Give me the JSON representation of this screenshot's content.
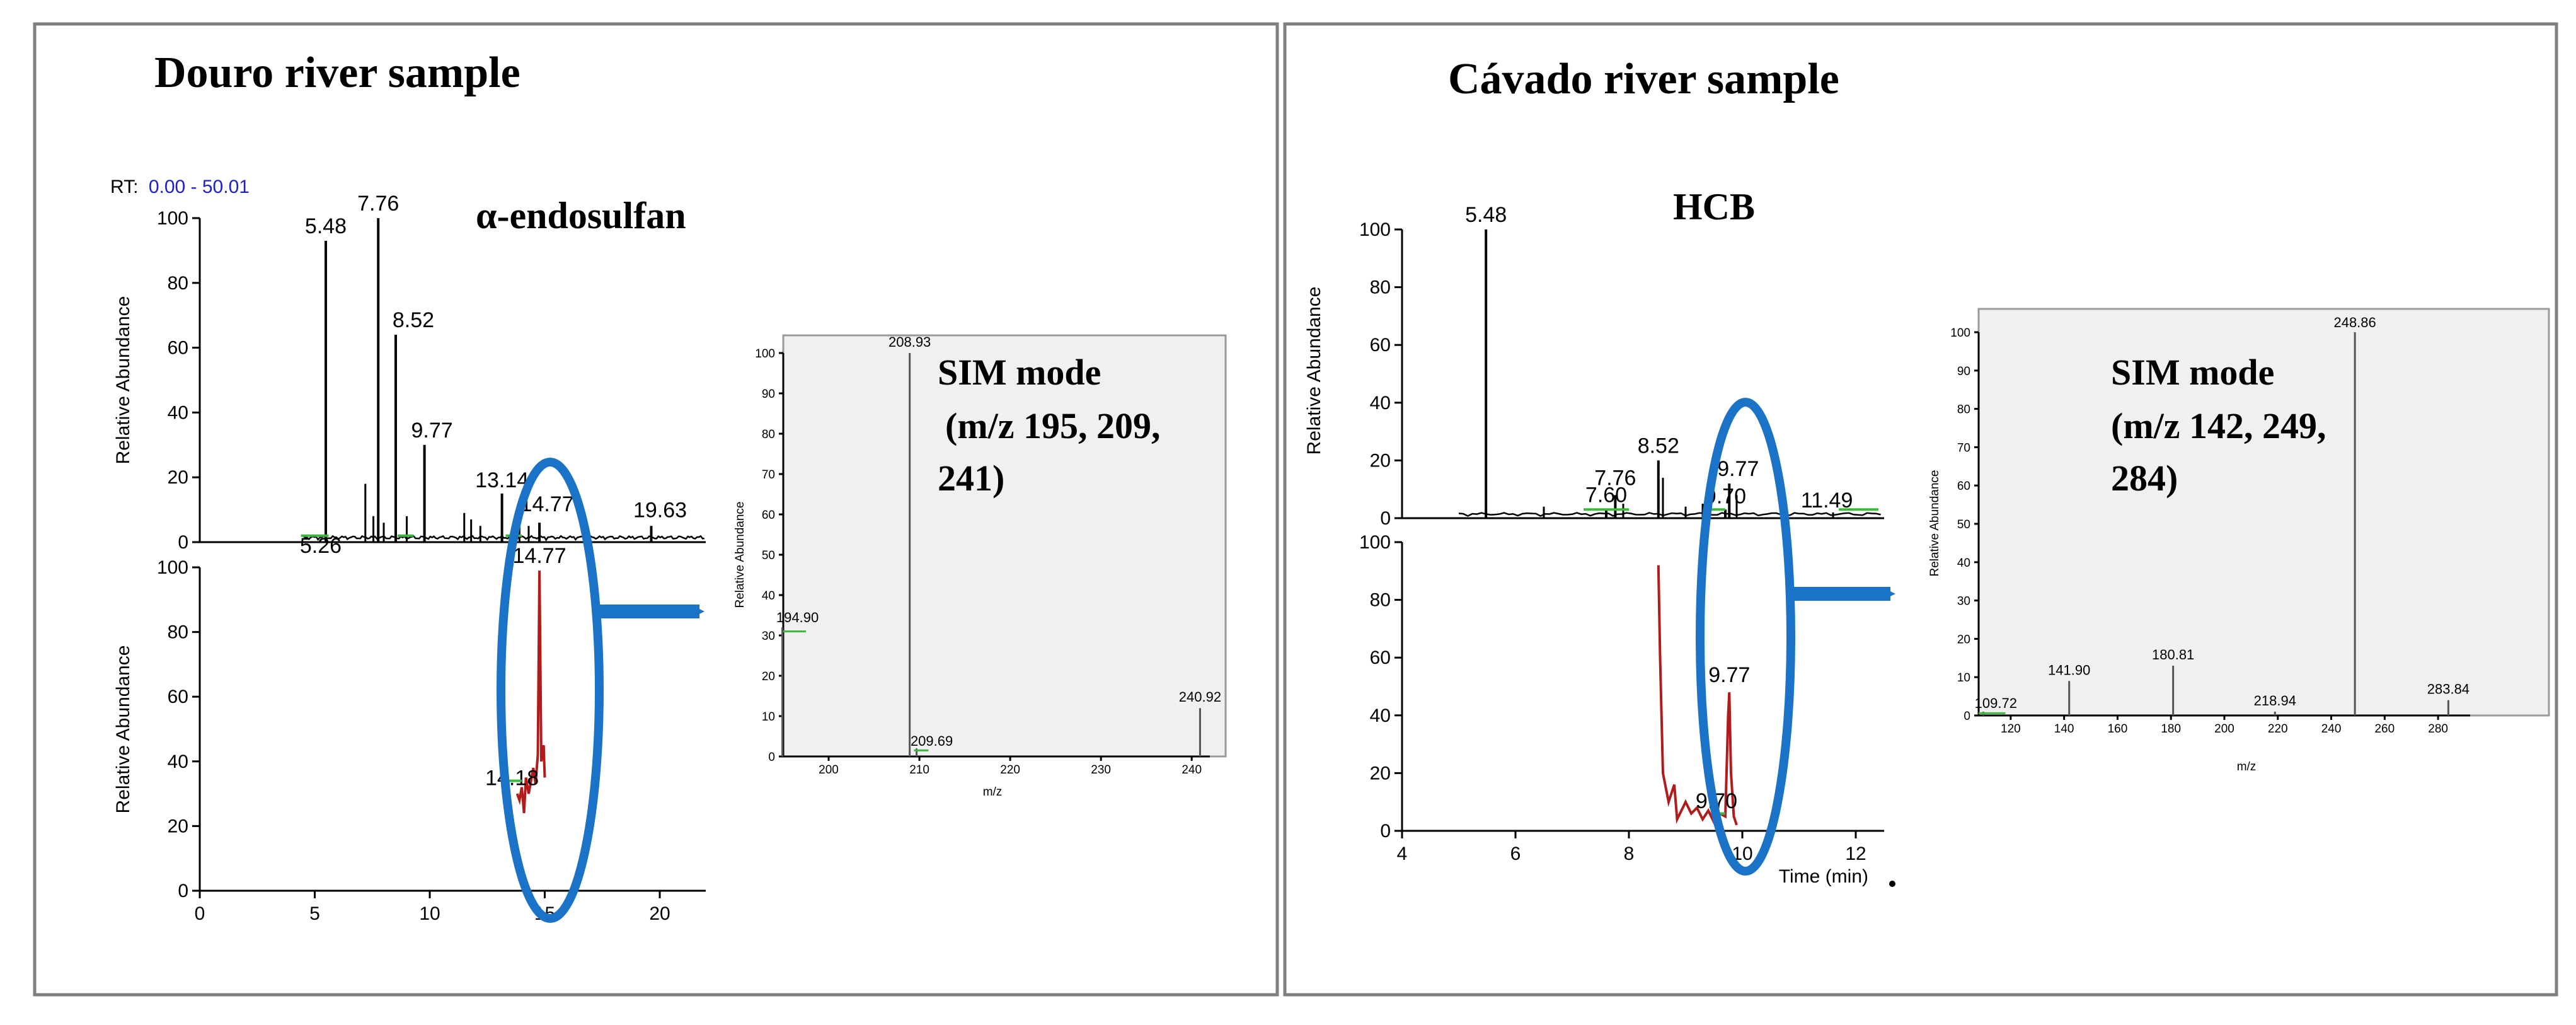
{
  "panels": [
    {
      "title": "Douro river sample",
      "rt_label": "RT:",
      "rt_range": "0.00 - 50.01",
      "compound": "α-endosulfan",
      "tic": {
        "ylabel": "Relative Abundance",
        "ylim": [
          0,
          100
        ],
        "xlim": [
          0,
          22
        ],
        "yticks": [
          "0",
          "20",
          "40",
          "60",
          "80",
          "100"
        ],
        "peaks": [
          {
            "x": 5.26,
            "y": 1,
            "label": "5.26"
          },
          {
            "x": 5.48,
            "y": 93,
            "label": "5.48"
          },
          {
            "x": 7.76,
            "y": 100,
            "label": "7.76"
          },
          {
            "x": 8.52,
            "y": 64,
            "label": "8.52"
          },
          {
            "x": 9.77,
            "y": 30,
            "label": "9.77"
          },
          {
            "x": 13.14,
            "y": 15,
            "label": "13.14"
          },
          {
            "x": 14.77,
            "y": 6,
            "label": "14.77"
          },
          {
            "x": 19.63,
            "y": 5,
            "label": "19.63"
          }
        ]
      },
      "sim_trace": {
        "ylabel": "Relative Abundance",
        "ylim": [
          0,
          100
        ],
        "xlim": [
          0,
          22
        ],
        "xticks": [
          "0",
          "5",
          "10",
          "15",
          "20"
        ],
        "yticks": [
          "0",
          "20",
          "40",
          "60",
          "80",
          "100"
        ],
        "peaks": [
          {
            "x": 14.77,
            "y": 99,
            "label": "14.77"
          },
          {
            "x": 14.18,
            "y": 35,
            "label": "14.18"
          }
        ]
      },
      "spectrum": {
        "ylabel": "Relative Abundance",
        "xlabel": "m/z",
        "xlim": [
          195,
          242
        ],
        "ylim": [
          0,
          100
        ],
        "xticks": [
          "200",
          "210",
          "220",
          "230",
          "240"
        ],
        "yticks": [
          "0",
          "10",
          "20",
          "30",
          "40",
          "50",
          "60",
          "70",
          "80",
          "90",
          "100"
        ],
        "sim_title": "SIM mode",
        "sim_ions": [
          "(m/z 195, 209,",
          "241)"
        ],
        "peaks": [
          {
            "mz": 194.9,
            "ab": 32,
            "label": "194.90"
          },
          {
            "mz": 208.93,
            "ab": 100,
            "label": "208.93"
          },
          {
            "mz": 209.69,
            "ab": 2,
            "label": "209.69"
          },
          {
            "mz": 240.92,
            "ab": 12,
            "label": "240.92"
          }
        ]
      }
    },
    {
      "title": "Cávado river sample",
      "compound": "HCB",
      "tic": {
        "ylabel": "Relative Abundance",
        "ylim": [
          0,
          100
        ],
        "xlim": [
          4,
          12.5
        ],
        "yticks": [
          "0",
          "20",
          "40",
          "60",
          "80",
          "100"
        ],
        "peaks": [
          {
            "x": 5.48,
            "y": 100,
            "label": "5.48"
          },
          {
            "x": 7.6,
            "y": 3,
            "label": "7.60"
          },
          {
            "x": 7.76,
            "y": 8,
            "label": "7.76"
          },
          {
            "x": 8.52,
            "y": 20,
            "label": "8.52"
          },
          {
            "x": 9.7,
            "y": 3,
            "label": "9.70"
          },
          {
            "x": 9.77,
            "y": 12,
            "label": "9.77"
          },
          {
            "x": 11.49,
            "y": 2,
            "label": "11.49"
          }
        ]
      },
      "sim_trace": {
        "xlabel": "Time (min)",
        "ylim": [
          0,
          100
        ],
        "xlim": [
          4,
          12.5
        ],
        "xticks": [
          "4",
          "6",
          "8",
          "10",
          "12"
        ],
        "yticks": [
          "0",
          "20",
          "40",
          "60",
          "80",
          "100"
        ],
        "peaks": [
          {
            "x": 9.77,
            "y": 48,
            "label": "9.77"
          },
          {
            "x": 9.7,
            "y": 7,
            "label": "9.70"
          }
        ]
      },
      "spectrum": {
        "ylabel": "Relative Abundance",
        "xlabel": "m/z",
        "xlim": [
          108,
          292
        ],
        "ylim": [
          0,
          100
        ],
        "xticks": [
          "120",
          "140",
          "160",
          "180",
          "200",
          "220",
          "240",
          "260",
          "280"
        ],
        "yticks": [
          "0",
          "10",
          "20",
          "30",
          "40",
          "50",
          "60",
          "70",
          "80",
          "90",
          "100"
        ],
        "sim_title": "SIM mode",
        "sim_ions": [
          "(m/z 142, 249,",
          "284)"
        ],
        "peaks": [
          {
            "mz": 109.72,
            "ab": 1,
            "label": "109.72"
          },
          {
            "mz": 141.9,
            "ab": 9,
            "label": "141.90"
          },
          {
            "mz": 180.81,
            "ab": 13,
            "label": "180.81"
          },
          {
            "mz": 218.94,
            "ab": 1,
            "label": "218.94"
          },
          {
            "mz": 248.86,
            "ab": 100,
            "label": "248.86"
          },
          {
            "mz": 283.84,
            "ab": 4,
            "label": "283.84"
          }
        ]
      }
    }
  ],
  "chart_data": [
    {
      "type": "line",
      "xlabel": "",
      "ylabel": "Relative Abundance",
      "ylim": [
        0,
        100
      ],
      "xlim": [
        0,
        22
      ],
      "x": [
        5.26,
        5.48,
        7.76,
        8.52,
        9.77,
        13.14,
        14.77,
        19.63
      ],
      "values": [
        1,
        93,
        100,
        64,
        30,
        15,
        6,
        5
      ]
    },
    {
      "type": "line",
      "xlabel": "",
      "ylabel": "Relative Abundance",
      "ylim": [
        0,
        100
      ],
      "xlim": [
        0,
        22
      ],
      "x": [
        14.18,
        14.77
      ],
      "values": [
        35,
        99
      ]
    },
    {
      "type": "bar",
      "xlabel": "m/z",
      "ylabel": "Relative Abundance",
      "ylim": [
        0,
        100
      ],
      "categories": [
        "194.90",
        "208.93",
        "209.69",
        "240.92"
      ],
      "values": [
        32,
        100,
        2,
        12
      ]
    },
    {
      "type": "line",
      "xlabel": "",
      "ylabel": "Relative Abundance",
      "ylim": [
        0,
        100
      ],
      "xlim": [
        4,
        12.5
      ],
      "x": [
        5.48,
        7.6,
        7.76,
        8.52,
        9.7,
        9.77,
        11.49
      ],
      "values": [
        100,
        3,
        8,
        20,
        3,
        12,
        2
      ]
    },
    {
      "type": "line",
      "xlabel": "Time (min)",
      "ylabel": "",
      "ylim": [
        0,
        100
      ],
      "xlim": [
        4,
        12.5
      ],
      "x": [
        9.7,
        9.77
      ],
      "values": [
        7,
        48
      ]
    },
    {
      "type": "bar",
      "xlabel": "m/z",
      "ylabel": "Relative Abundance",
      "ylim": [
        0,
        100
      ],
      "categories": [
        "109.72",
        "141.90",
        "180.81",
        "218.94",
        "248.86",
        "283.84"
      ],
      "values": [
        1,
        9,
        13,
        1,
        100,
        4
      ]
    }
  ],
  "colors": {
    "tic_line": "#000000",
    "sim_line": "#b01c1c",
    "highlight": "#1a73c7",
    "baseline_marker": "#3cb93c",
    "rt_range": "#1f1fc8",
    "spectrum_bg": "#f0f0f0"
  }
}
